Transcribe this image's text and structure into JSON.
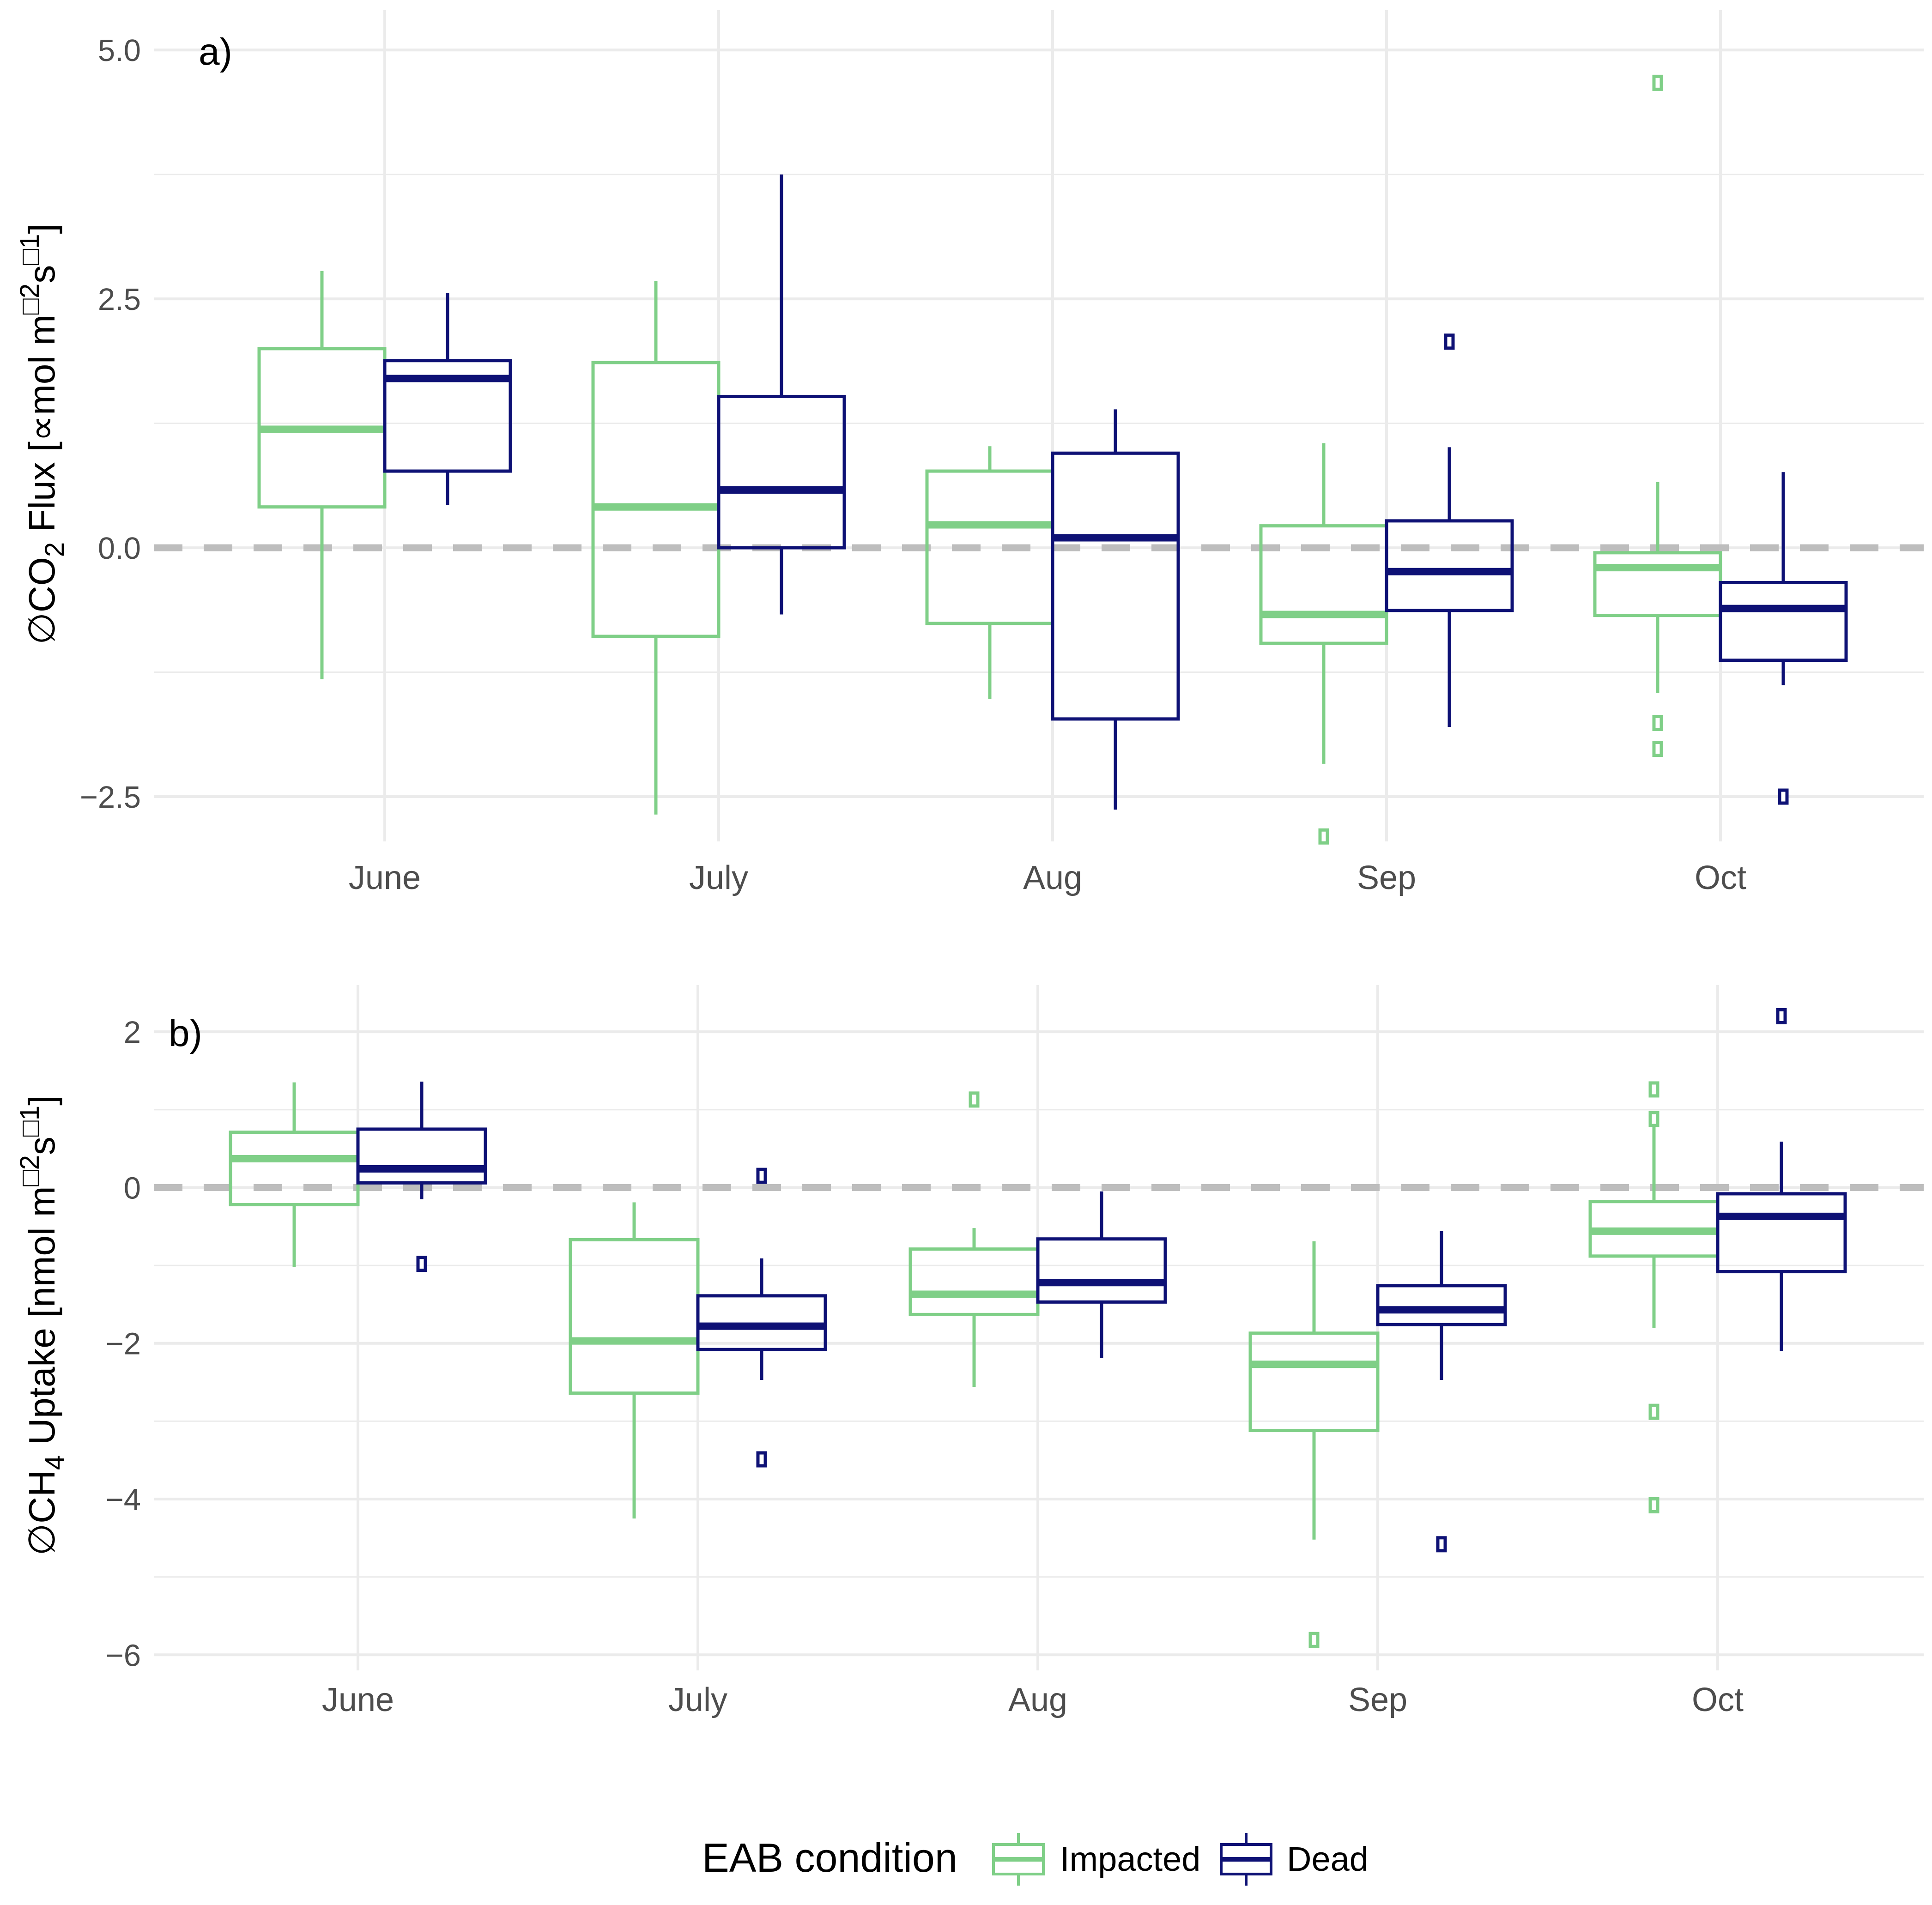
{
  "colors": {
    "impacted": "#7fcf87",
    "dead": "#0e1175",
    "grid": "#ebebeb",
    "zero_line": "#bdbdbd",
    "axis_text": "#4d4d4d"
  },
  "legend": {
    "title": "EAB condition",
    "items": [
      {
        "key": "impacted",
        "label": "Impacted",
        "color": "#7fcf87"
      },
      {
        "key": "dead",
        "label": "Dead",
        "color": "#0e1175"
      }
    ]
  },
  "chart_data": [
    {
      "type": "boxplot",
      "panel": "a)",
      "ylabel": {
        "prefix": "∅CO",
        "sub": "2",
        "rest": " Flux [∝mol m",
        "sup1": "□2",
        "mid": "s",
        "sup2": "□1",
        "close": "]"
      },
      "ylim": [
        -2.95,
        5.4
      ],
      "yticks": [
        5.0,
        2.5,
        0.0,
        -2.5
      ],
      "ytick_labels": [
        "5.0",
        "2.5",
        "0.0",
        "−2.5"
      ],
      "categories": [
        "June",
        "July",
        "Aug",
        "Sep",
        "Oct"
      ],
      "reference_line": 0,
      "series": [
        {
          "name": "Impacted",
          "boxes": [
            {
              "lo": -1.32,
              "q1": 0.41,
              "med": 1.19,
              "q3": 2.0,
              "hi": 2.78,
              "outliers": []
            },
            {
              "lo": -2.68,
              "q1": -0.89,
              "med": 0.41,
              "q3": 1.86,
              "hi": 2.68,
              "outliers": []
            },
            {
              "lo": -1.52,
              "q1": -0.76,
              "med": 0.23,
              "q3": 0.77,
              "hi": 1.02,
              "outliers": []
            },
            {
              "lo": -2.17,
              "q1": -0.96,
              "med": -0.67,
              "q3": 0.22,
              "hi": 1.05,
              "outliers": [
                -2.9
              ]
            },
            {
              "lo": -1.46,
              "q1": -0.68,
              "med": -0.2,
              "q3": -0.05,
              "hi": 0.66,
              "outliers": [
                4.67,
                -1.76,
                -2.02
              ]
            }
          ]
        },
        {
          "name": "Dead",
          "boxes": [
            {
              "lo": 0.43,
              "q1": 0.77,
              "med": 1.7,
              "q3": 1.88,
              "hi": 2.56,
              "outliers": []
            },
            {
              "lo": -0.67,
              "q1": 0.0,
              "med": 0.58,
              "q3": 1.52,
              "hi": 3.75,
              "outliers": []
            },
            {
              "lo": -2.63,
              "q1": -1.72,
              "med": 0.1,
              "q3": 0.95,
              "hi": 1.39,
              "outliers": []
            },
            {
              "lo": -1.8,
              "q1": -0.63,
              "med": -0.24,
              "q3": 0.27,
              "hi": 1.01,
              "outliers": [
                2.07
              ]
            },
            {
              "lo": -1.38,
              "q1": -1.13,
              "med": -0.61,
              "q3": -0.35,
              "hi": 0.76,
              "outliers": [
                -2.5
              ]
            }
          ]
        }
      ]
    },
    {
      "type": "boxplot",
      "panel": "b)",
      "ylabel": {
        "prefix": "∅CH",
        "sub": "4",
        "rest": " Uptake [nmol m",
        "sup1": "□2",
        "mid": "s",
        "sup2": "□1",
        "close": "]"
      },
      "ylim": [
        -6.2,
        2.6
      ],
      "yticks": [
        2,
        0,
        -2,
        -4,
        -6
      ],
      "ytick_labels": [
        "2",
        "0",
        "−2",
        "−4",
        "−6"
      ],
      "categories": [
        "June",
        "July",
        "Aug",
        "Sep",
        "Oct"
      ],
      "reference_line": 0,
      "series": [
        {
          "name": "Impacted",
          "boxes": [
            {
              "lo": -1.02,
              "q1": -0.22,
              "med": 0.37,
              "q3": 0.71,
              "hi": 1.35,
              "outliers": []
            },
            {
              "lo": -4.25,
              "q1": -2.64,
              "med": -1.97,
              "q3": -0.67,
              "hi": -0.19,
              "outliers": []
            },
            {
              "lo": -2.56,
              "q1": -1.63,
              "med": -1.37,
              "q3": -0.79,
              "hi": -0.52,
              "outliers": [
                1.13
              ]
            },
            {
              "lo": -4.52,
              "q1": -3.12,
              "med": -2.27,
              "q3": -1.87,
              "hi": -0.69,
              "outliers": [
                -5.81
              ]
            },
            {
              "lo": -1.8,
              "q1": -0.88,
              "med": -0.56,
              "q3": -0.18,
              "hi": 0.89,
              "outliers": [
                1.26,
                0.88,
                -2.88,
                -4.08
              ]
            }
          ]
        },
        {
          "name": "Dead",
          "boxes": [
            {
              "lo": -0.15,
              "q1": 0.06,
              "med": 0.24,
              "q3": 0.75,
              "hi": 1.36,
              "outliers": [
                -0.98
              ]
            },
            {
              "lo": -2.47,
              "q1": -2.08,
              "med": -1.78,
              "q3": -1.39,
              "hi": -0.91,
              "outliers": [
                0.15,
                -3.49
              ]
            },
            {
              "lo": -2.19,
              "q1": -1.47,
              "med": -1.22,
              "q3": -0.66,
              "hi": -0.05,
              "outliers": []
            },
            {
              "lo": -2.47,
              "q1": -1.76,
              "med": -1.57,
              "q3": -1.26,
              "hi": -0.56,
              "outliers": [
                -4.58
              ]
            },
            {
              "lo": -2.1,
              "q1": -1.08,
              "med": -0.37,
              "q3": -0.08,
              "hi": 0.59,
              "outliers": [
                2.2
              ]
            }
          ]
        }
      ]
    }
  ]
}
